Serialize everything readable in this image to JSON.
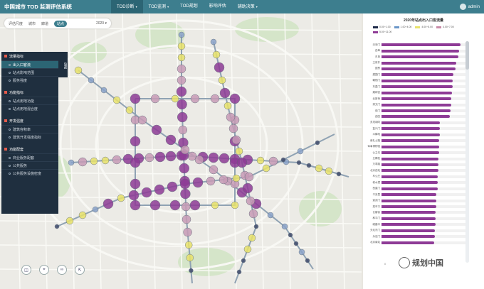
{
  "header": {
    "app_title": "中国城市 TOD 监测评估系统",
    "nav": [
      {
        "label": "TOD诊断",
        "caret": "▾",
        "active": true
      },
      {
        "label": "TOD监测",
        "caret": "▾",
        "active": false
      },
      {
        "label": "TOD规划",
        "caret": "",
        "active": false
      },
      {
        "label": "影响评估",
        "caret": "",
        "active": false
      },
      {
        "label": "辅助决策",
        "caret": "▾",
        "active": false
      }
    ],
    "user": "admin"
  },
  "filter": {
    "label": "评估尺度",
    "options": [
      "城市",
      "廊道",
      "站点"
    ],
    "selected": "站点",
    "year": "2020",
    "year_caret": "▾"
  },
  "sidebar": {
    "tab_label": "隐藏",
    "sections": [
      {
        "title": "流量指标",
        "items": [
          {
            "label": "出入口客流",
            "active": true
          },
          {
            "label": "站点影响范围",
            "active": false
          },
          {
            "label": "服务强度",
            "active": false
          }
        ]
      },
      {
        "title": "功能指标",
        "items": [
          {
            "label": "站点用地功能",
            "active": false
          },
          {
            "label": "站点用地混合度",
            "active": false
          }
        ]
      },
      {
        "title": "开发强度",
        "items": [
          {
            "label": "建筑容积率",
            "active": false
          },
          {
            "label": "建筑开发强度指标",
            "active": false
          }
        ]
      },
      {
        "title": "功能配套",
        "items": [
          {
            "label": "商业服务配套",
            "active": false
          },
          {
            "label": "公共服务",
            "active": false
          },
          {
            "label": "公共服务设施密度",
            "active": false
          }
        ]
      }
    ]
  },
  "tools": [
    {
      "icon": "layers-icon",
      "glyph": "◫"
    },
    {
      "icon": "location-icon",
      "glyph": "⌖"
    },
    {
      "icon": "binoculars-icon",
      "glyph": "∞"
    },
    {
      "icon": "export-icon",
      "glyph": "⇱"
    }
  ],
  "colors": {
    "accent": "#3d7e8e",
    "sidebar_bg": "#1f2f3f",
    "bar": "#8e3b96",
    "legend": [
      "#1e2a4a",
      "#6a96c8",
      "#e8e26a",
      "#c98ba8",
      "#8e3b96"
    ]
  },
  "chart_data": {
    "type": "bar",
    "orientation": "horizontal",
    "title": "2020年站点出入口客流量",
    "legend": [
      "0.00~1.00",
      "1.00~4.00",
      "4.00~5.00",
      "4.00~7.00",
      "5.00~11.00"
    ],
    "categories": [
      "天安门",
      "西单",
      "东单",
      "王府井",
      "国贸",
      "建国门",
      "朝阳门",
      "东直门",
      "雍和宫",
      "北新桥",
      "崇文门",
      "前门",
      "西四",
      "灵境胡同",
      "复兴门",
      "木樨地",
      "南礼士路",
      "军事博物馆",
      "公主坟",
      "五棵松",
      "万寿路",
      "北京西站",
      "车公庄",
      "积水潭",
      "西直门",
      "平安里",
      "宣武门",
      "菜市口",
      "长椿街",
      "和平门",
      "磁器口",
      "天坛东门",
      "永定门",
      "北京南站"
    ],
    "values": [
      10.2,
      10.0,
      9.9,
      9.6,
      9.5,
      9.3,
      9.2,
      9.2,
      9.1,
      9.0,
      9.0,
      8.9,
      8.8,
      7.5,
      7.5,
      7.5,
      7.4,
      7.4,
      7.4,
      7.3,
      7.3,
      7.3,
      7.2,
      7.2,
      7.2,
      7.1,
      7.1,
      7.1,
      7.0,
      7.0,
      7.0,
      6.9,
      6.9,
      6.8
    ],
    "xlim": [
      0,
      11
    ]
  },
  "watermark": "规划中国",
  "axis_zero": "0"
}
